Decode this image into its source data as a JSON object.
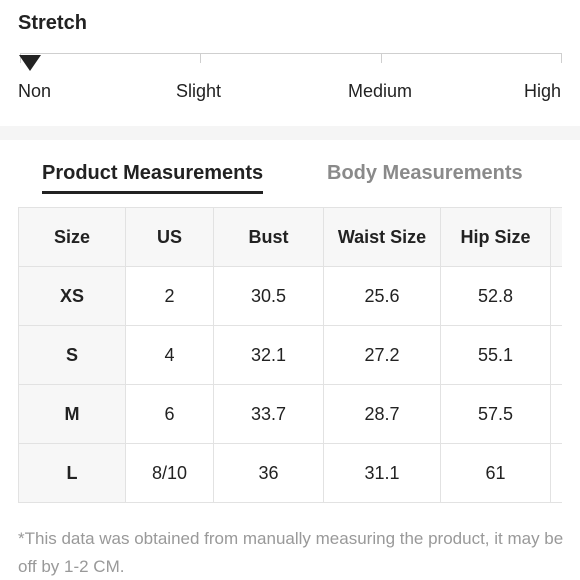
{
  "stretch": {
    "title": "Stretch",
    "levels": [
      "Non",
      "Slight",
      "Medium",
      "High"
    ],
    "selected": "Non",
    "marker_color": "#222222"
  },
  "tabs": [
    {
      "label": "Product Measurements",
      "active": true
    },
    {
      "label": "Body Measurements",
      "active": false
    }
  ],
  "table": {
    "headers": [
      "Size",
      "US",
      "Bust",
      "Waist Size",
      "Hip Size"
    ],
    "rows": [
      [
        "XS",
        "2",
        "30.5",
        "25.6",
        "52.8"
      ],
      [
        "S",
        "4",
        "32.1",
        "27.2",
        "55.1"
      ],
      [
        "M",
        "6",
        "33.7",
        "28.7",
        "57.5"
      ],
      [
        "L",
        "8/10",
        "36",
        "31.1",
        "61"
      ]
    ]
  },
  "footnote": "*This data was obtained from manually measuring the product, it may be off by 1-2 CM."
}
